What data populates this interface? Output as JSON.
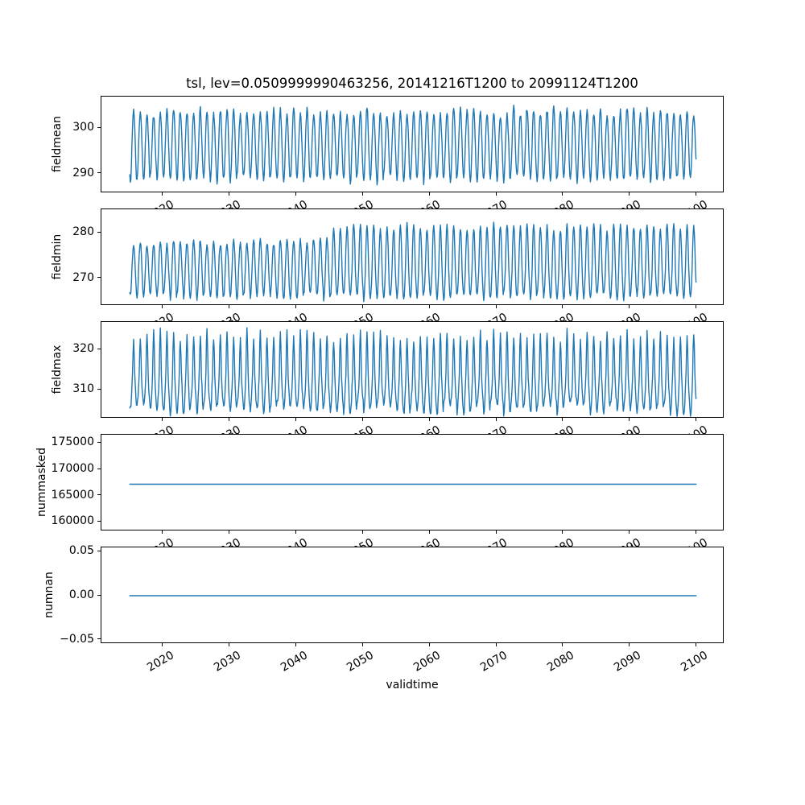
{
  "figure": {
    "title": "tsl, lev=0.0509999990463256, 20141216T1200 to 20991124T1200",
    "xlabel": "validtime",
    "background": "#ffffff",
    "line_color": "#1f77b4",
    "axis_color": "#000000"
  },
  "chart_data": {
    "type": "line",
    "title": "tsl, lev=0.0509999990463256, 20141216T1200 to 20991124T1200",
    "xlabel": "validtime",
    "legend": "none",
    "grid": false,
    "x": {
      "label": "validtime",
      "start": 2014.958,
      "end": 2099.898,
      "lim": [
        2010.71,
        2104.15
      ],
      "ticks": [
        2020,
        2030,
        2040,
        2050,
        2060,
        2070,
        2080,
        2090,
        2100
      ],
      "tick_labels": [
        "2020",
        "2030",
        "2040",
        "2050",
        "2060",
        "2070",
        "2080",
        "2090",
        "2100"
      ],
      "tick_rotation_deg": 30,
      "samples_per_year": 12
    },
    "subplots": [
      {
        "ylabel": "fieldmean",
        "yticks": [
          290,
          300
        ],
        "ytick_labels": [
          "290",
          "300"
        ],
        "ylim": [
          285.7,
          306.9
        ],
        "observed": {
          "annual_peak_approx": [
            302.5,
            305.5
          ],
          "annual_trough_approx": [
            287.0,
            290.5
          ],
          "mean_approx": 296.3
        },
        "series": {
          "kind": "seasonal",
          "mean": 296.3,
          "amp_up": 7.3,
          "amp_down": 7.6,
          "amp_jitter": 0.9,
          "noise": 0.55,
          "peak_sharpness": 1,
          "seed": 11
        }
      },
      {
        "ylabel": "fieldmin",
        "yticks": [
          270,
          280
        ],
        "ytick_labels": [
          "270",
          "280"
        ],
        "ylim": [
          264.0,
          285.1
        ],
        "observed": {
          "annual_peak_before_2043": 278.5,
          "annual_peak_after_2047": [
            280.5,
            284.0
          ],
          "annual_trough_approx": [
            265.0,
            267.5
          ],
          "mean_approx": 273.5
        },
        "series": {
          "kind": "seasonal",
          "mean": 272.0,
          "amp_up": 6.0,
          "amp_down": 6.0,
          "amp_jitter": 0.8,
          "noise": 0.45,
          "peak_sharpness": 1,
          "ramp": {
            "start": 2042,
            "end": 2047,
            "extra": 3.3
          },
          "seed": 22
        }
      },
      {
        "ylabel": "fieldmax",
        "yticks": [
          310,
          320
        ],
        "ytick_labels": [
          "310",
          "320"
        ],
        "ylim": [
          302.8,
          326.9
        ],
        "observed": {
          "annual_peak_approx": [
            320.0,
            326.5
          ],
          "annual_trough_approx": [
            303.5,
            307.5
          ],
          "dense_band_approx": [
            306,
            314
          ]
        },
        "series": {
          "kind": "seasonal",
          "mean": 310.6,
          "amp_up": 13.0,
          "amp_down": 5.4,
          "amp_jitter": 1.5,
          "noise": 0.7,
          "peak_sharpness": 2,
          "seed": 33
        }
      },
      {
        "ylabel": "nummasked",
        "yticks": [
          160000,
          165000,
          170000,
          175000
        ],
        "ytick_labels": [
          "160000",
          "165000",
          "170000",
          "175000"
        ],
        "ylim": [
          158200,
          176600
        ],
        "observed": {
          "constant_value": 167170
        },
        "series": {
          "kind": "constant",
          "value": 167170
        }
      },
      {
        "ylabel": "numnan",
        "yticks": [
          -0.05,
          0.0,
          0.05
        ],
        "ytick_labels": [
          "−0.05",
          "0.00",
          "0.05"
        ],
        "ylim": [
          -0.055,
          0.055
        ],
        "observed": {
          "constant_value": 0
        },
        "series": {
          "kind": "constant",
          "value": 0
        }
      }
    ]
  }
}
